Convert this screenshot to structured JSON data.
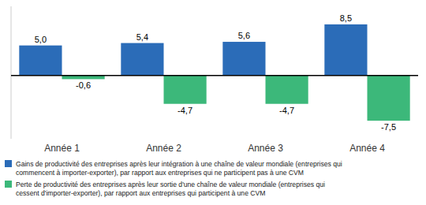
{
  "chart_data": {
    "type": "bar",
    "categories": [
      "Année 1",
      "Année 2",
      "Année 3",
      "Année 4"
    ],
    "series": [
      {
        "name": "Gains de productivité des entreprises après leur intégration à une chaîne de valeur mondiale (entreprises qui\ncommencent à importer-exporter), par rapport aux entreprises qui ne participent pas à une CVM",
        "color": "#2B6CB8",
        "values": [
          5.0,
          5.4,
          5.6,
          8.5
        ],
        "value_labels": [
          "5,0",
          "5,4",
          "5,6",
          "8,5"
        ]
      },
      {
        "name": "Perte de productivité des entreprises après leur sortie d'une chaîne de valeur mondiale (entreprises qui\ncessent d'importer-exporter), par rapport aux entreprises qui participent à une CVM",
        "color": "#3CB87A",
        "values": [
          -0.6,
          -4.7,
          -4.7,
          -7.5
        ],
        "value_labels": [
          "-0,6",
          "-4,7",
          "-4,7",
          "-7,5"
        ]
      }
    ],
    "ylim": [
      -10.5,
      11.5
    ],
    "tick_labels": "x",
    "data_labels": true,
    "grid": false,
    "legend": "bottom"
  }
}
